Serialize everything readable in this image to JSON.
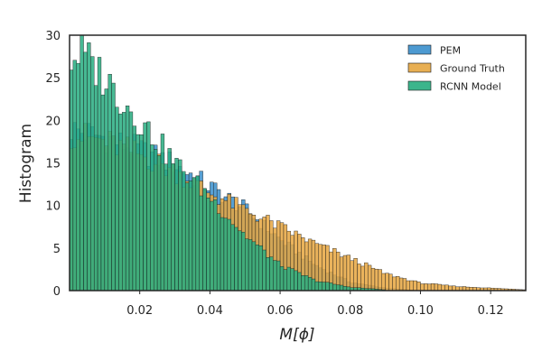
{
  "chart_data": {
    "type": "bar",
    "chart_kind": "histogram",
    "title": "",
    "xlabel": "M[ϕ]",
    "ylabel": "Histogram",
    "xlim": [
      0.0,
      0.13
    ],
    "ylim": [
      0,
      30
    ],
    "xticks": [
      0.02,
      0.04,
      0.06,
      0.08,
      0.1,
      0.12
    ],
    "xtick_labels": [
      "0.02",
      "0.04",
      "0.06",
      "0.08",
      "0.10",
      "0.12"
    ],
    "yticks": [
      0,
      5,
      10,
      15,
      20,
      25,
      30
    ],
    "ytick_labels": [
      "0",
      "5",
      "10",
      "15",
      "20",
      "25",
      "30"
    ],
    "grid": false,
    "legend_position": "top-right",
    "bin_width": 0.001,
    "series": [
      {
        "name": "PEM",
        "color": "#3a8fcc",
        "x": [
          0.0,
          0.01,
          0.02,
          0.03,
          0.04,
          0.05,
          0.06,
          0.07,
          0.08,
          0.09,
          0.1
        ],
        "y": [
          19,
          18,
          16.5,
          14.8,
          12.2,
          9.6,
          6.0,
          3.0,
          1.0,
          0.3,
          0.0
        ]
      },
      {
        "name": "Ground Truth",
        "color": "#e6a640",
        "x": [
          0.0,
          0.01,
          0.02,
          0.03,
          0.04,
          0.05,
          0.06,
          0.07,
          0.08,
          0.09,
          0.1,
          0.11,
          0.12,
          0.13
        ],
        "y": [
          18.5,
          17.5,
          16.0,
          14.0,
          11.5,
          9.5,
          7.5,
          5.5,
          3.8,
          2.0,
          0.9,
          0.5,
          0.3,
          0.1
        ]
      },
      {
        "name": "RCNN Model",
        "color": "#27ad80",
        "x": [
          0.0,
          0.003,
          0.01,
          0.02,
          0.03,
          0.04,
          0.05,
          0.06,
          0.07,
          0.08,
          0.09
        ],
        "y": [
          27,
          28,
          25,
          20,
          15,
          11,
          6.5,
          3.0,
          1.2,
          0.4,
          0.1
        ]
      }
    ]
  }
}
